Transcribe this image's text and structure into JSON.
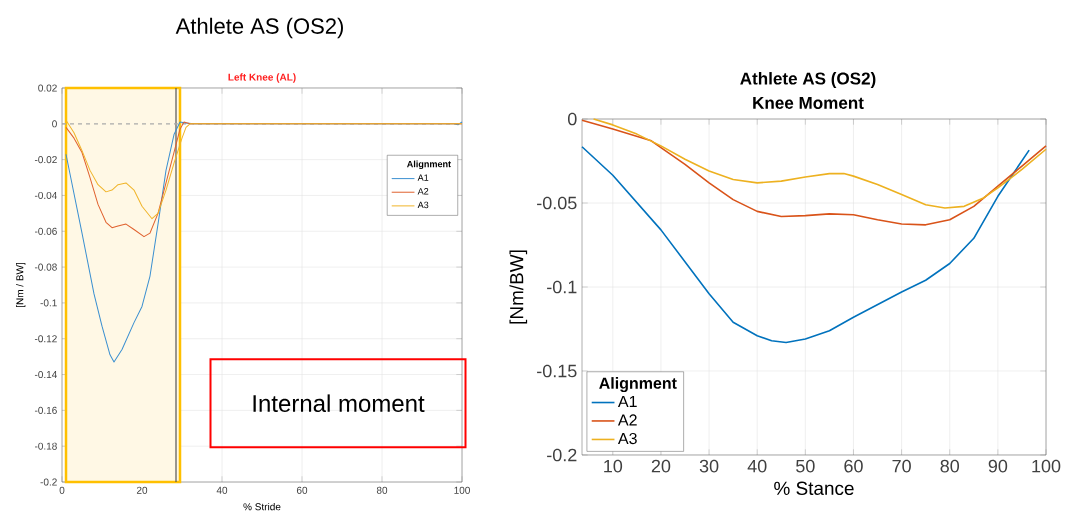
{
  "chart_data": [
    {
      "type": "line",
      "title": "Athlete AS (OS2)",
      "subtitle": "Left Knee (AL)",
      "xlabel": "% Stride",
      "ylabel": "[Nm / BW]",
      "legend_title": "Alignment",
      "legend": "top right",
      "grid": true,
      "line_style": "solid",
      "xlim": [
        0,
        100
      ],
      "xticks": [
        0,
        20,
        40,
        60,
        80,
        100
      ],
      "ylim": [
        -0.2,
        0.02
      ],
      "yticks": [
        -0.2,
        -0.18,
        -0.16,
        -0.14,
        -0.12,
        -0.1,
        -0.08,
        -0.06,
        -0.04,
        -0.02,
        0,
        0.02
      ],
      "ref_lines": [
        {
          "axis": "x",
          "value": 28.5,
          "color": "#555555",
          "line_style": "solid"
        },
        {
          "axis": "y",
          "value": 0,
          "color": "#aaaaaa",
          "line_style": "dashed"
        }
      ],
      "bands": [
        {
          "axis": "x",
          "from": 1,
          "to": 29.5,
          "color": "#ffc000"
        }
      ],
      "annotations": [
        "Internal moment"
      ],
      "series": [
        {
          "name": "A1",
          "color": "#3a8fd0",
          "x": [
            1,
            5,
            8,
            10,
            12,
            13,
            15,
            18,
            20,
            22,
            24,
            26,
            28,
            29.5,
            31,
            33,
            98,
            99,
            100
          ],
          "values": [
            -0.017,
            -0.061,
            -0.095,
            -0.113,
            -0.129,
            -0.133,
            -0.126,
            -0.111,
            -0.102,
            -0.085,
            -0.056,
            -0.026,
            -0.006,
            0.001,
            0.0005,
            0,
            0,
            -0.0005,
            0.001
          ]
        },
        {
          "name": "A2",
          "color": "#e0612e",
          "x": [
            1,
            3,
            5,
            7,
            9,
            11,
            12.5,
            14,
            16,
            18,
            20.5,
            22,
            24,
            26,
            28,
            29.5,
            30.5,
            32,
            100
          ],
          "values": [
            -0.002,
            -0.008,
            -0.016,
            -0.03,
            -0.045,
            -0.055,
            -0.058,
            -0.057,
            -0.056,
            -0.059,
            -0.063,
            -0.061,
            -0.05,
            -0.033,
            -0.016,
            -0.003,
            0.001,
            0,
            0
          ]
        },
        {
          "name": "A3",
          "color": "#f0b429",
          "x": [
            1,
            3,
            5,
            7,
            9,
            11,
            12.5,
            14,
            16,
            18,
            20,
            22.5,
            24,
            26,
            28,
            30,
            31,
            32,
            100
          ],
          "values": [
            0.002,
            -0.005,
            -0.015,
            -0.026,
            -0.034,
            -0.038,
            -0.037,
            -0.034,
            -0.033,
            -0.037,
            -0.046,
            -0.053,
            -0.05,
            -0.037,
            -0.022,
            -0.008,
            -0.002,
            0,
            0
          ]
        }
      ]
    },
    {
      "type": "line",
      "title": "Athlete AS (OS2)",
      "subtitle": "Knee Moment",
      "xlabel": "% Stance",
      "ylabel": "[Nm/BW]",
      "legend_title": "Alignment",
      "legend": "bottom left",
      "grid": true,
      "line_style": "solid",
      "xlim": [
        3.6,
        100
      ],
      "xticks": [
        10,
        20,
        30,
        40,
        50,
        60,
        70,
        80,
        90,
        100
      ],
      "ylim": [
        -0.2,
        0
      ],
      "yticks": [
        -0.2,
        -0.15,
        -0.1,
        -0.05,
        0
      ],
      "series": [
        {
          "name": "A1",
          "color": "#0072bd",
          "x": [
            3.6,
            10,
            20,
            30,
            35,
            40,
            43,
            46,
            50,
            55,
            60,
            70,
            75,
            80,
            85,
            90,
            96.5
          ],
          "values": [
            -0.0165,
            -0.0335,
            -0.066,
            -0.104,
            -0.121,
            -0.129,
            -0.132,
            -0.133,
            -0.131,
            -0.126,
            -0.118,
            -0.103,
            -0.096,
            -0.086,
            -0.071,
            -0.046,
            -0.0185
          ]
        },
        {
          "name": "A2",
          "color": "#d95319",
          "x": [
            3.6,
            10,
            18,
            20,
            25,
            30,
            35,
            40,
            45,
            50,
            55,
            60,
            65,
            70,
            75,
            80,
            85,
            90,
            95,
            100
          ],
          "values": [
            -0.0008,
            -0.006,
            -0.013,
            -0.017,
            -0.027,
            -0.038,
            -0.048,
            -0.055,
            -0.058,
            -0.0575,
            -0.0565,
            -0.057,
            -0.06,
            -0.0625,
            -0.063,
            -0.06,
            -0.052,
            -0.04,
            -0.028,
            -0.016
          ]
        },
        {
          "name": "A3",
          "color": "#edb120",
          "x": [
            6,
            10,
            15,
            20,
            25,
            30,
            35,
            40,
            45,
            50,
            55,
            58,
            60,
            65,
            70,
            75,
            79,
            83,
            87,
            90,
            95,
            100
          ],
          "values": [
            0,
            -0.0035,
            -0.009,
            -0.016,
            -0.024,
            -0.031,
            -0.036,
            -0.038,
            -0.037,
            -0.0345,
            -0.0325,
            -0.0325,
            -0.034,
            -0.039,
            -0.045,
            -0.051,
            -0.053,
            -0.052,
            -0.047,
            -0.041,
            -0.03,
            -0.018
          ]
        }
      ]
    }
  ]
}
